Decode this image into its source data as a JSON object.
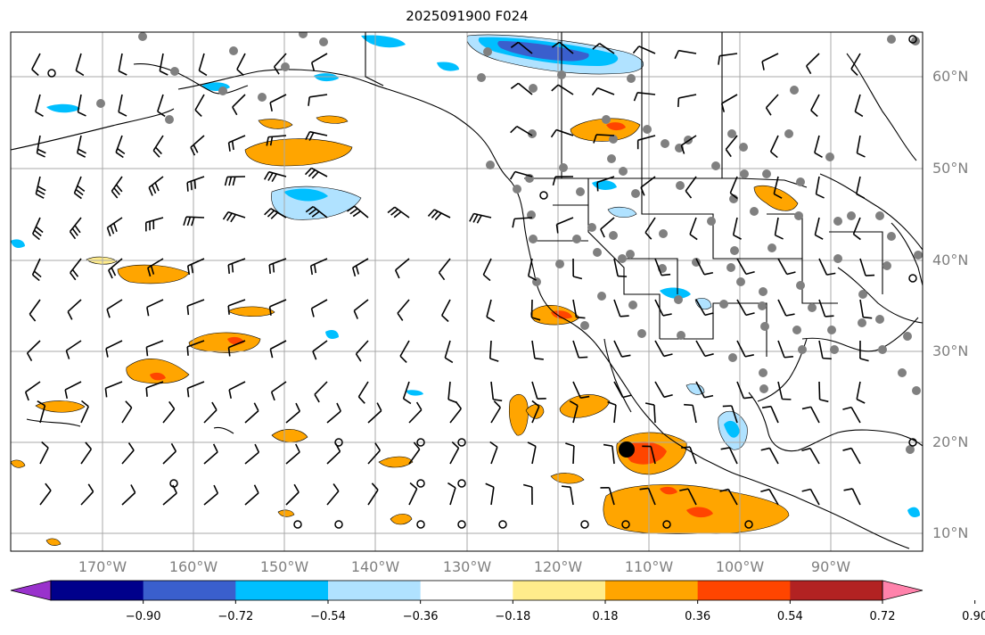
{
  "title": "2025091900 F024",
  "lat_labels": [
    "60°N",
    "50°N",
    "40°N",
    "30°N",
    "20°N",
    "10°N"
  ],
  "lon_labels": [
    "170°W",
    "160°W",
    "150°W",
    "140°W",
    "130°W",
    "120°W",
    "110°W",
    "100°W",
    "90°W"
  ],
  "colorbar": {
    "colors": [
      "#9932cc",
      "#00008b",
      "#3a5fcd",
      "#00bfff",
      "#b0e2ff",
      "#ffffff",
      "#ffec8b",
      "#ffa500",
      "#ff4500",
      "#b22222",
      "#ff82ab"
    ],
    "tick_labels": [
      "−0.90",
      "−0.72",
      "−0.54",
      "−0.36",
      "−0.18",
      "0.18",
      "0.36",
      "0.54",
      "0.72",
      "0.90"
    ],
    "extend": "both"
  },
  "colors": {
    "grid": "#a9a9a9",
    "coast": "#000000",
    "station": "#808080",
    "label": "#7f7f7f"
  }
}
